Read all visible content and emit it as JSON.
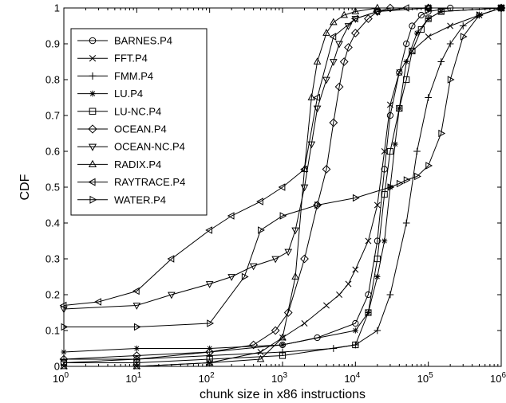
{
  "chart_data": {
    "type": "line",
    "title": "",
    "xlabel": "chunk size in x86 instructions",
    "ylabel": "CDF",
    "xscale": "log",
    "xlim": [
      1,
      1000000
    ],
    "ylim": [
      0,
      1
    ],
    "grid": false,
    "legend_position": "top-left",
    "x_ticks": [
      {
        "value": 1,
        "base": "10",
        "exp": "0"
      },
      {
        "value": 10,
        "base": "10",
        "exp": "1"
      },
      {
        "value": 100,
        "base": "10",
        "exp": "2"
      },
      {
        "value": 1000,
        "base": "10",
        "exp": "3"
      },
      {
        "value": 10000,
        "base": "10",
        "exp": "4"
      },
      {
        "value": 100000,
        "base": "10",
        "exp": "5"
      },
      {
        "value": 1000000,
        "base": "10",
        "exp": "6"
      }
    ],
    "y_ticks": [
      {
        "value": 0,
        "label": "0"
      },
      {
        "value": 0.1,
        "label": "0.1"
      },
      {
        "value": 0.2,
        "label": "0.2"
      },
      {
        "value": 0.3,
        "label": "0.3"
      },
      {
        "value": 0.4,
        "label": "0.4"
      },
      {
        "value": 0.5,
        "label": "0.5"
      },
      {
        "value": 0.6,
        "label": "0.6"
      },
      {
        "value": 0.7,
        "label": "0.7"
      },
      {
        "value": 0.8,
        "label": "0.8"
      },
      {
        "value": 0.9,
        "label": "0.9"
      },
      {
        "value": 1,
        "label": "1"
      }
    ],
    "series": [
      {
        "name": "BARNES.P4",
        "marker": "circle",
        "x": [
          1,
          10,
          100,
          1000,
          3000,
          10000,
          15000,
          20000,
          25000,
          30000,
          40000,
          50000,
          60000,
          80000,
          100000,
          200000,
          1000000
        ],
        "y": [
          0.01,
          0.02,
          0.04,
          0.06,
          0.08,
          0.12,
          0.2,
          0.35,
          0.55,
          0.7,
          0.82,
          0.9,
          0.95,
          0.98,
          0.99,
          1.0,
          1.0
        ]
      },
      {
        "name": "FFT.P4",
        "marker": "x",
        "x": [
          1,
          10,
          100,
          500,
          1000,
          2000,
          4000,
          6000,
          8000,
          10000,
          15000,
          20000,
          25000,
          30000,
          40000,
          60000,
          100000,
          200000,
          500000,
          1000000
        ],
        "y": [
          0.0,
          0.0,
          0.01,
          0.04,
          0.08,
          0.12,
          0.17,
          0.2,
          0.23,
          0.27,
          0.35,
          0.45,
          0.6,
          0.73,
          0.82,
          0.88,
          0.92,
          0.95,
          0.98,
          1.0
        ]
      },
      {
        "name": "FMM.P4",
        "marker": "plus",
        "x": [
          1,
          10,
          100,
          1000,
          5000,
          10000,
          20000,
          30000,
          50000,
          70000,
          100000,
          150000,
          200000,
          300000,
          500000,
          1000000
        ],
        "y": [
          0.02,
          0.02,
          0.03,
          0.04,
          0.05,
          0.06,
          0.1,
          0.2,
          0.4,
          0.6,
          0.75,
          0.85,
          0.9,
          0.95,
          0.98,
          1.0
        ]
      },
      {
        "name": "LU.P4",
        "marker": "asterisk",
        "x": [
          1,
          10,
          100,
          1000,
          10000,
          15000,
          20000,
          25000,
          30000,
          35000,
          40000,
          50000,
          70000,
          100000,
          150000,
          1000000
        ],
        "y": [
          0.04,
          0.05,
          0.05,
          0.06,
          0.1,
          0.15,
          0.25,
          0.35,
          0.5,
          0.62,
          0.72,
          0.85,
          0.93,
          0.97,
          0.99,
          1.0
        ]
      },
      {
        "name": "LU-NC.P4",
        "marker": "square",
        "x": [
          1,
          10,
          100,
          1000,
          10000,
          15000,
          20000,
          25000,
          30000,
          40000,
          50000,
          60000,
          80000,
          100000,
          150000,
          1000000
        ],
        "y": [
          0.01,
          0.01,
          0.02,
          0.03,
          0.06,
          0.15,
          0.3,
          0.48,
          0.6,
          0.72,
          0.8,
          0.88,
          0.94,
          0.97,
          0.99,
          1.0
        ]
      },
      {
        "name": "OCEAN.P4",
        "marker": "diamond",
        "x": [
          1,
          10,
          100,
          400,
          800,
          1200,
          2000,
          3000,
          4000,
          5000,
          6000,
          7000,
          8000,
          10000,
          15000,
          20000,
          30000,
          100000,
          1000000
        ],
        "y": [
          0.02,
          0.03,
          0.04,
          0.06,
          0.1,
          0.15,
          0.3,
          0.45,
          0.55,
          0.68,
          0.78,
          0.85,
          0.89,
          0.93,
          0.97,
          0.99,
          1.0,
          1.0,
          1.0
        ]
      },
      {
        "name": "OCEAN-NC.P4",
        "marker": "triangle-down",
        "x": [
          1,
          10,
          30,
          100,
          200,
          400,
          800,
          1200,
          1500,
          2000,
          2500,
          3000,
          4000,
          5000,
          6000,
          8000,
          10000,
          20000,
          100000,
          1000000
        ],
        "y": [
          0.16,
          0.17,
          0.2,
          0.23,
          0.25,
          0.28,
          0.3,
          0.32,
          0.38,
          0.5,
          0.62,
          0.72,
          0.8,
          0.85,
          0.9,
          0.95,
          0.97,
          0.99,
          1.0,
          1.0
        ]
      },
      {
        "name": "RADIX.P4",
        "marker": "triangle-up",
        "x": [
          1,
          10,
          100,
          500,
          1000,
          1500,
          2000,
          2500,
          3000,
          4000,
          5000,
          7000,
          10000,
          20000,
          100000,
          1000000
        ],
        "y": [
          0.0,
          0.0,
          0.01,
          0.02,
          0.08,
          0.25,
          0.55,
          0.75,
          0.85,
          0.93,
          0.96,
          0.98,
          0.99,
          1.0,
          1.0,
          1.0
        ]
      },
      {
        "name": "RAYTRACE.P4",
        "marker": "triangle-left",
        "x": [
          1,
          3,
          10,
          30,
          100,
          200,
          500,
          1000,
          2000,
          3000,
          5000,
          10000,
          20000,
          50000,
          100000,
          1000000
        ],
        "y": [
          0.17,
          0.18,
          0.21,
          0.3,
          0.38,
          0.42,
          0.46,
          0.5,
          0.55,
          0.75,
          0.92,
          0.97,
          0.99,
          1.0,
          1.0,
          1.0
        ]
      },
      {
        "name": "WATER.P4",
        "marker": "triangle-right",
        "x": [
          1,
          10,
          100,
          300,
          500,
          1000,
          3000,
          10000,
          30000,
          40000,
          50000,
          70000,
          100000,
          150000,
          200000,
          300000,
          500000,
          1000000
        ],
        "y": [
          0.11,
          0.11,
          0.12,
          0.25,
          0.38,
          0.42,
          0.45,
          0.47,
          0.5,
          0.51,
          0.52,
          0.53,
          0.56,
          0.65,
          0.8,
          0.92,
          0.98,
          1.0
        ]
      }
    ]
  }
}
